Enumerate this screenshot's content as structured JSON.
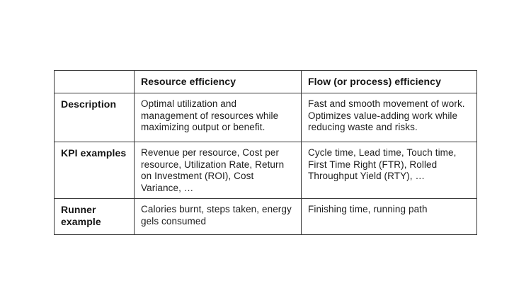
{
  "page": {
    "background_color": "#ffffff",
    "text_color": "#1d1d1d",
    "border_color": "#3a3a3a"
  },
  "table": {
    "columns": {
      "label": "",
      "resource": "Resource efficiency",
      "flow": "Flow (or process) efficiency"
    },
    "rows": [
      {
        "label": "Description",
        "resource": "Optimal utilization and management of resources while maximizing output or benefit.",
        "flow": "Fast and smooth movement of work. Optimizes value-adding work while reducing waste and risks."
      },
      {
        "label": "KPI examples",
        "resource": "Revenue per resource, Cost per resource, Utilization Rate, Return on Investment (ROI), Cost Variance, …",
        "flow": "Cycle time, Lead time, Touch time, First Time Right (FTR), Rolled Throughput Yield (RTY), …"
      },
      {
        "label": "Runner example",
        "resource": "Calories burnt, steps taken, energy gels consumed",
        "flow": "Finishing time, running path"
      }
    ]
  }
}
